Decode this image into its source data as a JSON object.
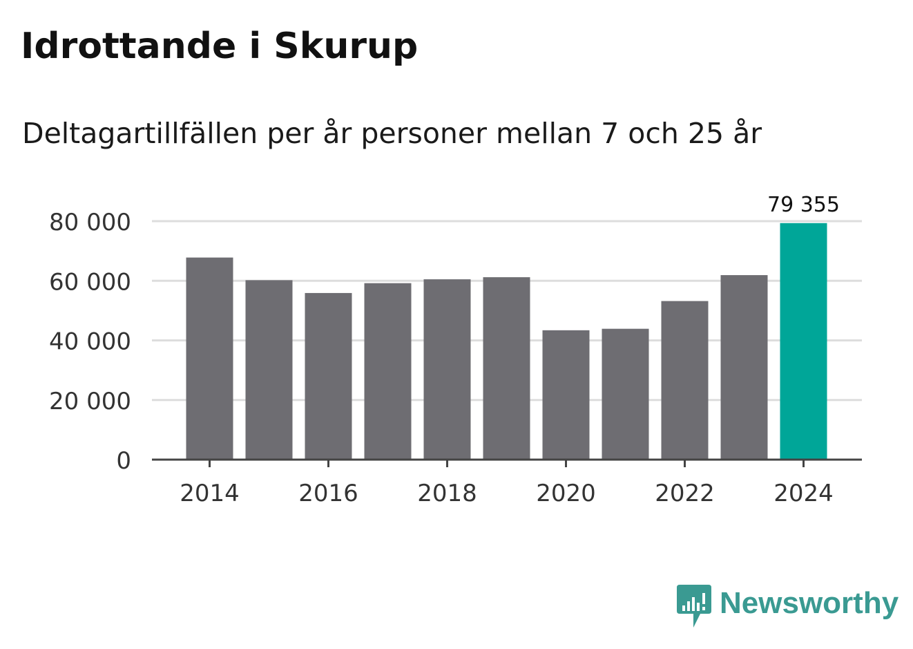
{
  "title": "Idrottande i Skurup",
  "subtitle": "Deltagartillfällen per år personer mellan 7 och 25 år",
  "brand": {
    "name": "Newsworthy",
    "color": "#3a9a92",
    "icon": "newsworthy-logo-icon"
  },
  "colors": {
    "bar": "#6e6d72",
    "highlight": "#00a698",
    "grid": "#dddddd",
    "axis": "#444444",
    "text": "#333333"
  },
  "chart_data": {
    "type": "bar",
    "title": "Idrottande i Skurup",
    "subtitle": "Deltagartillfällen per år personer mellan 7 och 25 år",
    "categories": [
      "2014",
      "2015",
      "2016",
      "2017",
      "2018",
      "2019",
      "2020",
      "2021",
      "2022",
      "2023",
      "2024"
    ],
    "values": [
      67800,
      60200,
      55900,
      59200,
      60500,
      61200,
      43400,
      43900,
      53200,
      61900,
      79355
    ],
    "highlight_index": 10,
    "data_labels": [
      {
        "index": 10,
        "text": "79 355"
      }
    ],
    "x_tick_labels": [
      "2014",
      "2016",
      "2018",
      "2020",
      "2022",
      "2024"
    ],
    "y_ticks": [
      {
        "value": 0,
        "label": "0"
      },
      {
        "value": 20000,
        "label": "20 000"
      },
      {
        "value": 40000,
        "label": "40 000"
      },
      {
        "value": 60000,
        "label": "60 000"
      },
      {
        "value": 80000,
        "label": "80 000"
      }
    ],
    "ylim": [
      0,
      80000
    ],
    "grid": true,
    "legend": false,
    "xlabel": "",
    "ylabel": ""
  }
}
